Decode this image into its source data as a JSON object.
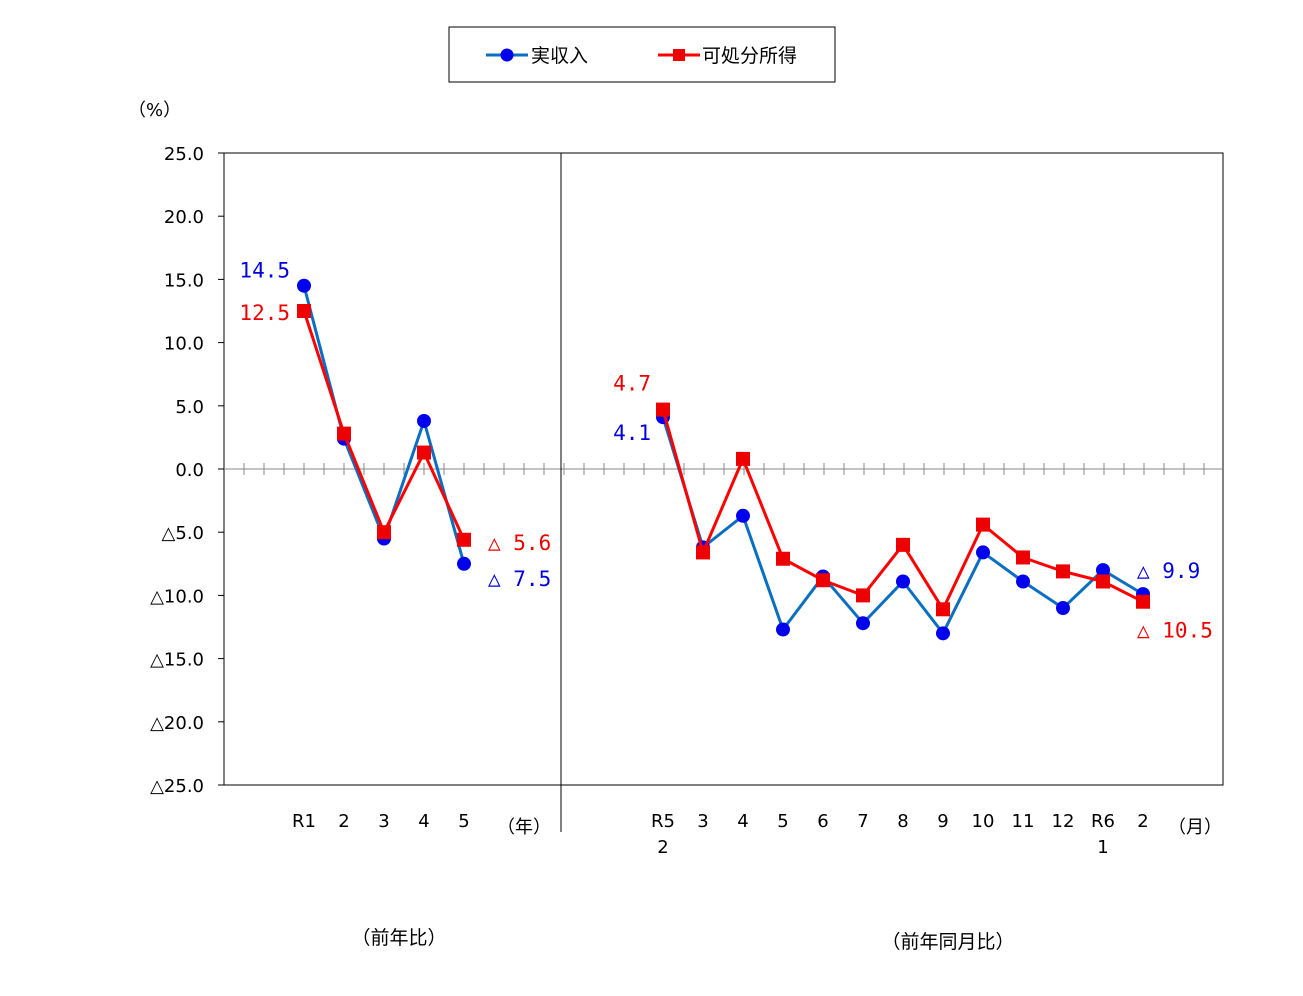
{
  "chart_data": {
    "type": "line",
    "y_unit": "（%）",
    "ylim": [
      -25,
      25
    ],
    "y_ticks": [
      {
        "value": 25,
        "label": "25.0"
      },
      {
        "value": 20,
        "label": "20.0"
      },
      {
        "value": 15,
        "label": "15.0"
      },
      {
        "value": 10,
        "label": "10.0"
      },
      {
        "value": 5,
        "label": "5.0"
      },
      {
        "value": 0,
        "label": "0.0"
      },
      {
        "value": -5,
        "label": "△5.0"
      },
      {
        "value": -10,
        "label": "△10.0"
      },
      {
        "value": -15,
        "label": "△15.0"
      },
      {
        "value": -20,
        "label": "△20.0"
      },
      {
        "value": -25,
        "label": "△25.0"
      }
    ],
    "legend": {
      "position": "top-center",
      "entries": [
        "実収入",
        "可処分所得"
      ]
    },
    "colors": {
      "income": "#0a6fc2",
      "income_marker": "#0000ee",
      "disposable": "#ff0000",
      "disposable_marker": "#ee0000"
    },
    "panels": [
      {
        "section_label": "（前年比）",
        "unit": "（年）",
        "categories": [
          {
            "line1": "R1",
            "line2": ""
          },
          {
            "line1": "2",
            "line2": ""
          },
          {
            "line1": "3",
            "line2": ""
          },
          {
            "line1": "4",
            "line2": ""
          },
          {
            "line1": "5",
            "line2": ""
          }
        ],
        "series": [
          {
            "name": "実収入",
            "values": [
              14.5,
              2.4,
              -5.5,
              3.8,
              -7.5
            ]
          },
          {
            "name": "可処分所得",
            "values": [
              12.5,
              2.8,
              -5.0,
              1.3,
              -5.6
            ]
          }
        ],
        "annotations": [
          {
            "series": 0,
            "index": 0,
            "text": "14.5"
          },
          {
            "series": 1,
            "index": 0,
            "text": "12.5"
          },
          {
            "series": 1,
            "index": 4,
            "text": "△ 5.6"
          },
          {
            "series": 0,
            "index": 4,
            "text": "△ 7.5"
          }
        ]
      },
      {
        "section_label": "（前年同月比）",
        "unit": "（月）",
        "categories": [
          {
            "line1": "R5",
            "line2": "2"
          },
          {
            "line1": "3",
            "line2": ""
          },
          {
            "line1": "4",
            "line2": ""
          },
          {
            "line1": "5",
            "line2": ""
          },
          {
            "line1": "6",
            "line2": ""
          },
          {
            "line1": "7",
            "line2": ""
          },
          {
            "line1": "8",
            "line2": ""
          },
          {
            "line1": "9",
            "line2": ""
          },
          {
            "line1": "10",
            "line2": ""
          },
          {
            "line1": "11",
            "line2": ""
          },
          {
            "line1": "12",
            "line2": ""
          },
          {
            "line1": "R6",
            "line2": "1"
          },
          {
            "line1": "2",
            "line2": ""
          }
        ],
        "series": [
          {
            "name": "実収入",
            "values": [
              4.1,
              -6.2,
              -3.7,
              -12.7,
              -8.5,
              -12.2,
              -8.9,
              -13.0,
              -6.6,
              -8.9,
              -11.0,
              -8.0,
              -9.9
            ]
          },
          {
            "name": "可処分所得",
            "values": [
              4.7,
              -6.6,
              0.8,
              -7.1,
              -8.8,
              -10.0,
              -6.0,
              -11.1,
              -4.4,
              -7.0,
              -8.1,
              -8.9,
              -10.5
            ]
          }
        ],
        "annotations": [
          {
            "series": 1,
            "index": 0,
            "text": "4.7"
          },
          {
            "series": 0,
            "index": 0,
            "text": "4.1"
          },
          {
            "series": 0,
            "index": 12,
            "text": "△ 9.9"
          },
          {
            "series": 1,
            "index": 12,
            "text": "△ 10.5"
          }
        ]
      }
    ]
  }
}
